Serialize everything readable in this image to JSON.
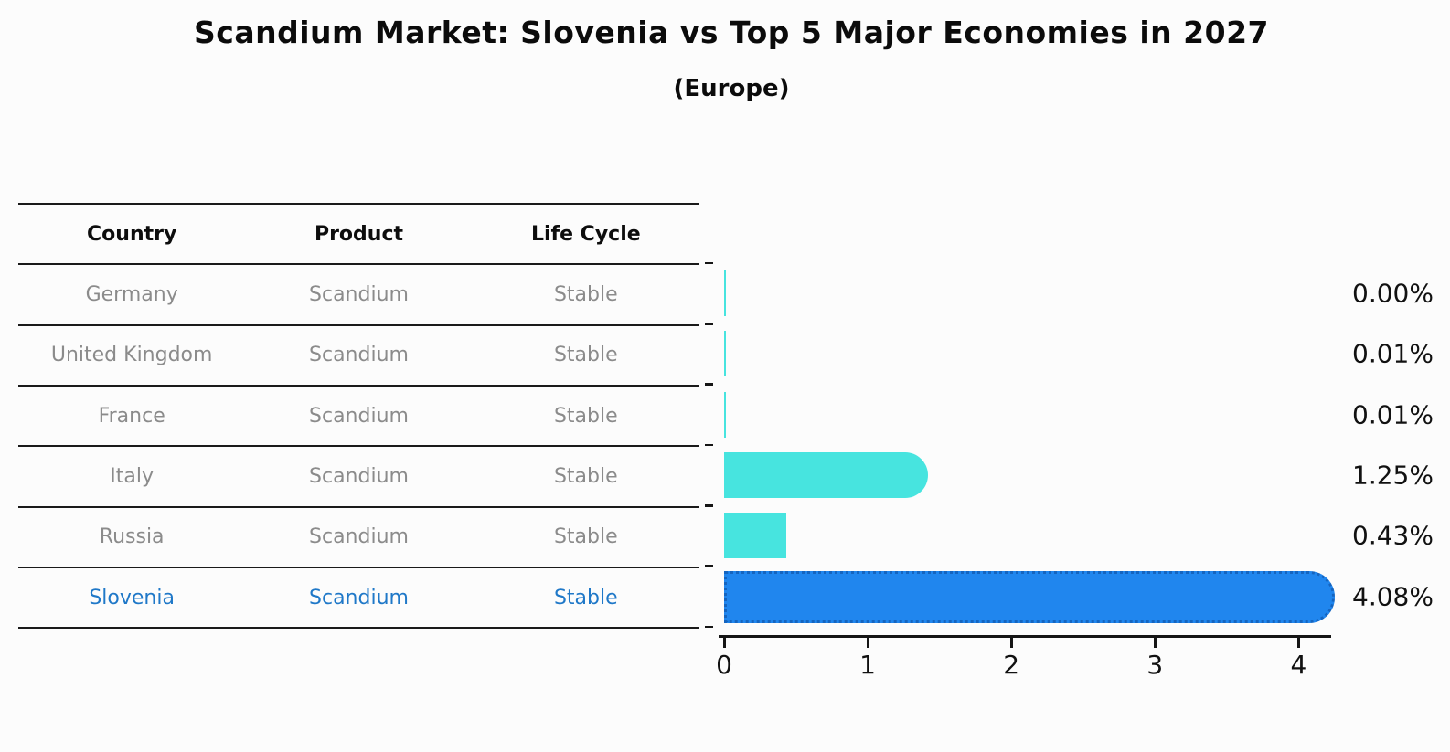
{
  "title": "Scandium Market: Slovenia vs Top 5 Major Economies in 2027",
  "subtitle": "(Europe)",
  "table": {
    "headers": {
      "country": "Country",
      "product": "Product",
      "life_cycle": "Life Cycle"
    },
    "rows": [
      {
        "country": "Germany",
        "product": "Scandium",
        "life_cycle": "Stable"
      },
      {
        "country": "United Kingdom",
        "product": "Scandium",
        "life_cycle": "Stable"
      },
      {
        "country": "France",
        "product": "Scandium",
        "life_cycle": "Stable"
      },
      {
        "country": "Italy",
        "product": "Scandium",
        "life_cycle": "Stable"
      },
      {
        "country": "Russia",
        "product": "Scandium",
        "life_cycle": "Stable"
      },
      {
        "country": "Slovenia",
        "product": "Scandium",
        "life_cycle": "Stable"
      }
    ],
    "highlight_row": "Slovenia"
  },
  "chart_data": {
    "type": "bar",
    "orientation": "horizontal",
    "title": "Scandium Market: Slovenia vs Top 5 Major Economies in 2027",
    "subtitle": "(Europe)",
    "categories": [
      "Germany",
      "United Kingdom",
      "France",
      "Italy",
      "Russia",
      "Slovenia"
    ],
    "values": [
      0.0,
      0.01,
      0.01,
      1.25,
      0.43,
      4.08
    ],
    "value_labels": [
      "0.00%",
      "0.01%",
      "0.01%",
      "1.25%",
      "0.43%",
      "4.08%"
    ],
    "x_ticks": [
      "0",
      "1",
      "2",
      "3",
      "4"
    ],
    "x_tick_values": [
      0,
      1,
      2,
      3,
      4
    ],
    "xlim": [
      0,
      4.22
    ],
    "grid": false,
    "legend": false,
    "highlight_index": 5,
    "colors": {
      "bar": "#47E4DF",
      "highlight_bar": "#2086EE",
      "highlight_border": "#1565C0",
      "highlight_text": "#1f78c8",
      "row_text": "#8b8b8b",
      "header_text": "#0d0d0d",
      "axis": "#161616",
      "background": "#FCFCFC"
    }
  }
}
